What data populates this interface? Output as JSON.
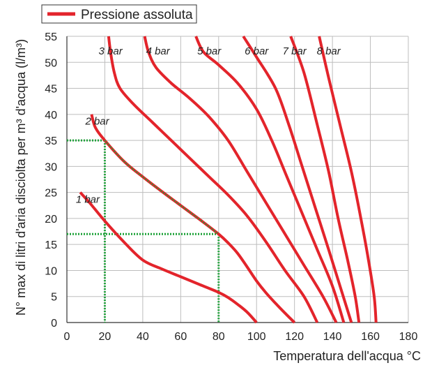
{
  "chart_data": {
    "type": "line",
    "title": "",
    "legend": {
      "label": "Pressione assoluta",
      "color": "#e3242b",
      "placement": "top-left"
    },
    "xlabel": "Temperatura dell'acqua °C",
    "ylabel": "N° max di litri d'aria disciolta per m³ d'acqua (l/m³)",
    "xlim": [
      0,
      180
    ],
    "ylim": [
      0,
      55
    ],
    "xticks": [
      "0",
      "20",
      "40",
      "60",
      "80",
      "100",
      "120",
      "140",
      "160",
      "180"
    ],
    "yticks": [
      "0",
      "5",
      "10",
      "15",
      "20",
      "25",
      "30",
      "35",
      "40",
      "45",
      "50",
      "55"
    ],
    "grid": true,
    "colors": {
      "curve": "#e3242b",
      "guide": "#1fa33a",
      "grid": "#bdbdbd"
    },
    "series": [
      {
        "name": "1 bar",
        "points": [
          [
            7,
            25
          ],
          [
            12,
            23
          ],
          [
            20,
            19.5
          ],
          [
            30,
            15.5
          ],
          [
            40,
            12
          ],
          [
            50,
            10.3
          ],
          [
            60,
            8.8
          ],
          [
            70,
            7.3
          ],
          [
            80,
            5.8
          ],
          [
            85,
            4.8
          ],
          [
            90,
            3.5
          ],
          [
            95,
            2
          ],
          [
            100,
            0
          ]
        ]
      },
      {
        "name": "2 bar",
        "points": [
          [
            13,
            40
          ],
          [
            15,
            37.5
          ],
          [
            20,
            35
          ],
          [
            30,
            31
          ],
          [
            40,
            28
          ],
          [
            50,
            25.2
          ],
          [
            60,
            22.5
          ],
          [
            70,
            19.8
          ],
          [
            80,
            17
          ],
          [
            85,
            15.3
          ],
          [
            90,
            13.3
          ],
          [
            95,
            10.7
          ],
          [
            100,
            8
          ],
          [
            105,
            5.7
          ],
          [
            110,
            3.7
          ],
          [
            115,
            1.8
          ],
          [
            120,
            0
          ]
        ]
      },
      {
        "name": "3 bar",
        "points": [
          [
            22,
            55
          ],
          [
            23,
            52
          ],
          [
            25,
            48
          ],
          [
            28,
            45
          ],
          [
            35,
            42
          ],
          [
            45,
            38.5
          ],
          [
            55,
            35
          ],
          [
            65,
            31.5
          ],
          [
            75,
            28
          ],
          [
            85,
            24.5
          ],
          [
            95,
            20.5
          ],
          [
            105,
            15.5
          ],
          [
            115,
            10
          ],
          [
            125,
            5
          ],
          [
            132,
            0
          ]
        ]
      },
      {
        "name": "4 bar",
        "points": [
          [
            41,
            55
          ],
          [
            43,
            52
          ],
          [
            47,
            49
          ],
          [
            55,
            46
          ],
          [
            65,
            43
          ],
          [
            75,
            39.5
          ],
          [
            85,
            35
          ],
          [
            95,
            29
          ],
          [
            105,
            23
          ],
          [
            115,
            17
          ],
          [
            125,
            11
          ],
          [
            135,
            5
          ],
          [
            142,
            0
          ]
        ]
      },
      {
        "name": "5 bar",
        "points": [
          [
            68,
            55
          ],
          [
            72,
            52
          ],
          [
            80,
            49.5
          ],
          [
            90,
            46
          ],
          [
            100,
            41
          ],
          [
            108,
            35
          ],
          [
            116,
            28
          ],
          [
            124,
            21
          ],
          [
            132,
            14
          ],
          [
            140,
            7
          ],
          [
            146,
            0
          ]
        ]
      },
      {
        "name": "6 bar",
        "points": [
          [
            93,
            55
          ],
          [
            100,
            51
          ],
          [
            110,
            45
          ],
          [
            117,
            38
          ],
          [
            124,
            30
          ],
          [
            131,
            22
          ],
          [
            138,
            14
          ],
          [
            144,
            7
          ],
          [
            150,
            0
          ]
        ]
      },
      {
        "name": "7 bar",
        "points": [
          [
            118,
            55
          ],
          [
            125,
            48
          ],
          [
            132,
            38
          ],
          [
            138,
            29
          ],
          [
            143,
            20
          ],
          [
            148,
            12
          ],
          [
            152,
            5
          ],
          [
            154,
            0
          ]
        ]
      },
      {
        "name": "8 bar",
        "points": [
          [
            133,
            55
          ],
          [
            138,
            47
          ],
          [
            144,
            38
          ],
          [
            150,
            29
          ],
          [
            155,
            20
          ],
          [
            159,
            12
          ],
          [
            162,
            5
          ],
          [
            163,
            0
          ]
        ]
      }
    ],
    "curve_labels": [
      {
        "text": "1 bar",
        "x": 11,
        "y": 23
      },
      {
        "text": "2 bar",
        "x": 16,
        "y": 38
      },
      {
        "text": "3 bar",
        "x": 23,
        "y": 51.5
      },
      {
        "text": "4 bar",
        "x": 48,
        "y": 51.5
      },
      {
        "text": "5 bar",
        "x": 75,
        "y": 51.5
      },
      {
        "text": "6 bar",
        "x": 100,
        "y": 51.5
      },
      {
        "text": "7 bar",
        "x": 120,
        "y": 51.5
      },
      {
        "text": "8 bar",
        "x": 138,
        "y": 51.5
      }
    ],
    "guides": [
      {
        "x": 20,
        "y": 35
      },
      {
        "x": 80,
        "y": 17
      }
    ],
    "guide_segment": {
      "from": [
        20,
        35
      ],
      "to": [
        80,
        17
      ]
    }
  }
}
